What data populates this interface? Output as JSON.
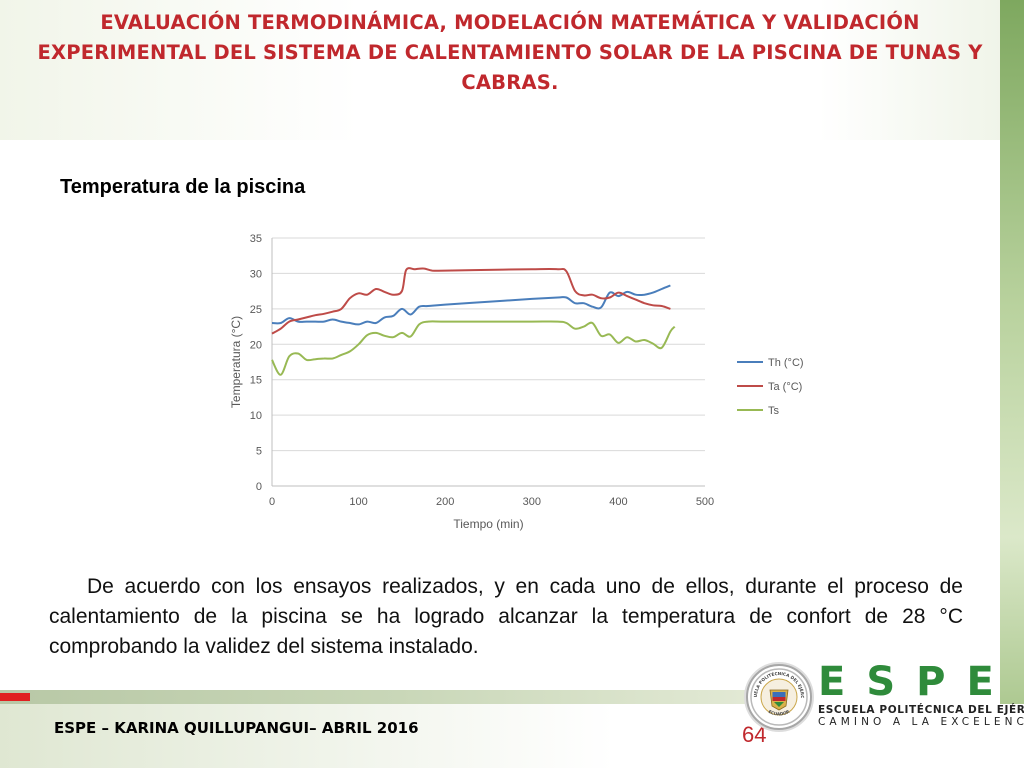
{
  "slide": {
    "title_lines": [
      "EVALUACIÓN TERMODINÁMICA, MODELACIÓN MATEMÁTICA Y VALIDACIÓN",
      "EXPERIMENTAL DEL SISTEMA DE CALENTAMIENTO SOLAR DE LA PISCINA DE TUNAS Y",
      "CABRAS."
    ],
    "section_heading": "Temperatura de la piscina",
    "body_text": "De acuerdo con los ensayos realizados, y en cada uno de ellos, durante el proceso de calentamiento de la piscina se ha logrado alcanzar la temperatura de confort de 28 °C comprobando la validez del sistema instalado.",
    "footer_text": "ESPE – KARINA QUILLUPANGUI– ABRIL 2016",
    "page_number": "64",
    "title_color": "#c0282d"
  },
  "logo": {
    "letters": "ESPE",
    "line1": "ESCUELA POLITÉCNICA DEL EJÉRCITO",
    "line2": "CAMINO A LA EXCELENCIA",
    "color": "#2f8b3b",
    "seal_text_top": "ESCUELA POLITÉCNICA DEL EJÉRCITO",
    "seal_text_bottom": "ECUADOR"
  },
  "chart_data": {
    "type": "line",
    "title": "",
    "xlabel": "Tiempo (min)",
    "ylabel": "Temperatura (°C)",
    "xlim": [
      0,
      500
    ],
    "ylim": [
      0,
      35
    ],
    "xticks": [
      0,
      100,
      200,
      300,
      400,
      500
    ],
    "yticks": [
      0,
      5,
      10,
      15,
      20,
      25,
      30,
      35
    ],
    "grid": "horizontal",
    "legend_position": "right",
    "series": [
      {
        "name": "Th (°C)",
        "color": "#4a7ebb",
        "points": [
          [
            0,
            23
          ],
          [
            10,
            23
          ],
          [
            20,
            23.7
          ],
          [
            30,
            23.2
          ],
          [
            40,
            23.2
          ],
          [
            50,
            23.2
          ],
          [
            60,
            23.2
          ],
          [
            70,
            23.5
          ],
          [
            80,
            23.2
          ],
          [
            90,
            23
          ],
          [
            100,
            22.8
          ],
          [
            110,
            23.2
          ],
          [
            120,
            23
          ],
          [
            130,
            23.8
          ],
          [
            140,
            24
          ],
          [
            150,
            25
          ],
          [
            160,
            24.2
          ],
          [
            170,
            25.3
          ],
          [
            180,
            25.4
          ],
          [
            200,
            25.6
          ],
          [
            250,
            26
          ],
          [
            300,
            26.4
          ],
          [
            330,
            26.6
          ],
          [
            340,
            26.6
          ],
          [
            350,
            25.8
          ],
          [
            360,
            25.8
          ],
          [
            370,
            25.3
          ],
          [
            380,
            25.2
          ],
          [
            390,
            27.3
          ],
          [
            400,
            26.8
          ],
          [
            410,
            27.4
          ],
          [
            420,
            27
          ],
          [
            430,
            27
          ],
          [
            440,
            27.3
          ],
          [
            450,
            27.8
          ],
          [
            460,
            28.3
          ]
        ]
      },
      {
        "name": "Ta (°C)",
        "color": "#be4b48",
        "points": [
          [
            0,
            21.5
          ],
          [
            10,
            22.2
          ],
          [
            20,
            23.2
          ],
          [
            30,
            23.5
          ],
          [
            40,
            23.8
          ],
          [
            50,
            24.1
          ],
          [
            60,
            24.3
          ],
          [
            70,
            24.6
          ],
          [
            80,
            25
          ],
          [
            90,
            26.5
          ],
          [
            100,
            27.2
          ],
          [
            110,
            27
          ],
          [
            120,
            27.8
          ],
          [
            130,
            27.4
          ],
          [
            140,
            27
          ],
          [
            150,
            27.5
          ],
          [
            155,
            30.5
          ],
          [
            165,
            30.6
          ],
          [
            175,
            30.7
          ],
          [
            185,
            30.4
          ],
          [
            200,
            30.4
          ],
          [
            250,
            30.5
          ],
          [
            300,
            30.6
          ],
          [
            330,
            30.6
          ],
          [
            340,
            30.3
          ],
          [
            350,
            27.5
          ],
          [
            360,
            26.9
          ],
          [
            370,
            27
          ],
          [
            380,
            26.5
          ],
          [
            390,
            26.6
          ],
          [
            400,
            27.3
          ],
          [
            410,
            26.8
          ],
          [
            420,
            26.3
          ],
          [
            430,
            25.8
          ],
          [
            440,
            25.5
          ],
          [
            450,
            25.4
          ],
          [
            460,
            25
          ]
        ]
      },
      {
        "name": "Ts",
        "color": "#98b954",
        "points": [
          [
            0,
            17.8
          ],
          [
            10,
            15.7
          ],
          [
            20,
            18.3
          ],
          [
            30,
            18.7
          ],
          [
            40,
            17.8
          ],
          [
            50,
            17.9
          ],
          [
            60,
            18
          ],
          [
            70,
            18
          ],
          [
            80,
            18.5
          ],
          [
            90,
            19
          ],
          [
            100,
            20
          ],
          [
            110,
            21.3
          ],
          [
            120,
            21.6
          ],
          [
            130,
            21.2
          ],
          [
            140,
            21
          ],
          [
            150,
            21.6
          ],
          [
            160,
            21.1
          ],
          [
            170,
            22.8
          ],
          [
            180,
            23.2
          ],
          [
            200,
            23.2
          ],
          [
            250,
            23.2
          ],
          [
            300,
            23.2
          ],
          [
            330,
            23.2
          ],
          [
            340,
            23
          ],
          [
            350,
            22.2
          ],
          [
            360,
            22.5
          ],
          [
            370,
            23
          ],
          [
            380,
            21.2
          ],
          [
            390,
            21.4
          ],
          [
            400,
            20.2
          ],
          [
            410,
            21
          ],
          [
            420,
            20.4
          ],
          [
            430,
            20.6
          ],
          [
            440,
            20.1
          ],
          [
            450,
            19.5
          ],
          [
            460,
            21.8
          ],
          [
            465,
            22.5
          ]
        ]
      }
    ]
  }
}
